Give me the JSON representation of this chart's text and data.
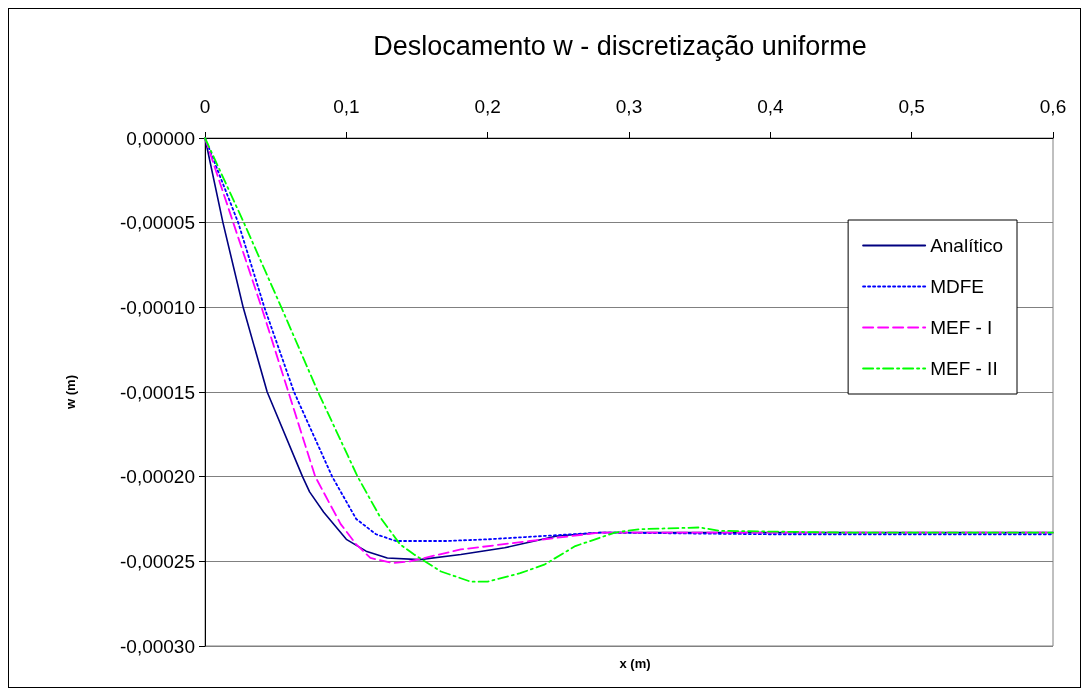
{
  "chart_data": {
    "type": "line",
    "title": "Deslocamento w - discretização uniforme",
    "xlabel": "x (m)",
    "ylabel": "w (m)",
    "xlim": [
      0,
      0.6
    ],
    "xticks": [
      {
        "value": 0,
        "label": "0"
      },
      {
        "value": 0.1,
        "label": "0,1"
      },
      {
        "value": 0.2,
        "label": "0,2"
      },
      {
        "value": 0.3,
        "label": "0,3"
      },
      {
        "value": 0.4,
        "label": "0,4"
      },
      {
        "value": 0.5,
        "label": "0,5"
      },
      {
        "value": 0.6,
        "label": "0,6"
      }
    ],
    "ylim": [
      -0.0003,
      0
    ],
    "yticks": [
      {
        "value": 0,
        "label": "0,00000"
      },
      {
        "value": -5e-05,
        "label": "-0,00005"
      },
      {
        "value": -0.0001,
        "label": "-0,00010"
      },
      {
        "value": -0.00015,
        "label": "-0,00015"
      },
      {
        "value": -0.0002,
        "label": "-0,00020"
      },
      {
        "value": -0.00025,
        "label": "-0,00025"
      },
      {
        "value": -0.0003,
        "label": "-0,00030"
      }
    ],
    "grid": "y",
    "legend": "right",
    "marker": "none",
    "series": [
      {
        "name": "Analítico",
        "color": "#000080",
        "line_style": "solid",
        "x": [
          0,
          0.0127,
          0.027,
          0.044,
          0.069,
          0.074,
          0.084,
          0.1,
          0.114,
          0.129,
          0.152,
          0.181,
          0.212,
          0.249,
          0.28,
          0.4,
          0.6
        ],
        "values": [
          0,
          -5e-05,
          -0.0001,
          -0.00015,
          -0.0002,
          -0.000209,
          -0.000221,
          -0.000237,
          -0.000244,
          -0.000248,
          -0.000249,
          -0.000246,
          -0.000242,
          -0.000235,
          -0.000233,
          -0.000233,
          -0.000233
        ]
      },
      {
        "name": "MDFE",
        "color": "#0000ff",
        "line_style": "dotted",
        "x": [
          0,
          0.0235,
          0.042,
          0.063,
          0.09,
          0.107,
          0.121,
          0.135,
          0.17,
          0.2,
          0.28,
          0.4,
          0.6
        ],
        "values": [
          0,
          -5e-05,
          -0.0001,
          -0.00015,
          -0.0002,
          -0.000225,
          -0.000234,
          -0.000238,
          -0.000238,
          -0.000237,
          -0.000233,
          -0.000234,
          -0.000234
        ]
      },
      {
        "name": "MEF - I",
        "color": "#ff00ff",
        "line_style": "dashed",
        "x": [
          0,
          0.02,
          0.04,
          0.059,
          0.078,
          0.096,
          0.107,
          0.117,
          0.133,
          0.145,
          0.181,
          0.23,
          0.28,
          0.4,
          0.6
        ],
        "values": [
          0,
          -5e-05,
          -0.0001,
          -0.00015,
          -0.0002,
          -0.000228,
          -0.00024,
          -0.000248,
          -0.000251,
          -0.00025,
          -0.000243,
          -0.000238,
          -0.000233,
          -0.000233,
          -0.000233
        ]
      },
      {
        "name": "MEF - II",
        "color": "#00ff00",
        "line_style": "dashdot",
        "x": [
          0,
          0.0275,
          0.054,
          0.08,
          0.108,
          0.124,
          0.138,
          0.148,
          0.167,
          0.188,
          0.2,
          0.223,
          0.24,
          0.262,
          0.29,
          0.308,
          0.35,
          0.364,
          0.45,
          0.6
        ],
        "values": [
          0,
          -5e-05,
          -0.0001,
          -0.00015,
          -0.0002,
          -0.000224,
          -0.00024,
          -0.000246,
          -0.000256,
          -0.000262,
          -0.000262,
          -0.000257,
          -0.000252,
          -0.000241,
          -0.000233,
          -0.000231,
          -0.00023,
          -0.000232,
          -0.000233,
          -0.000233
        ]
      }
    ]
  }
}
